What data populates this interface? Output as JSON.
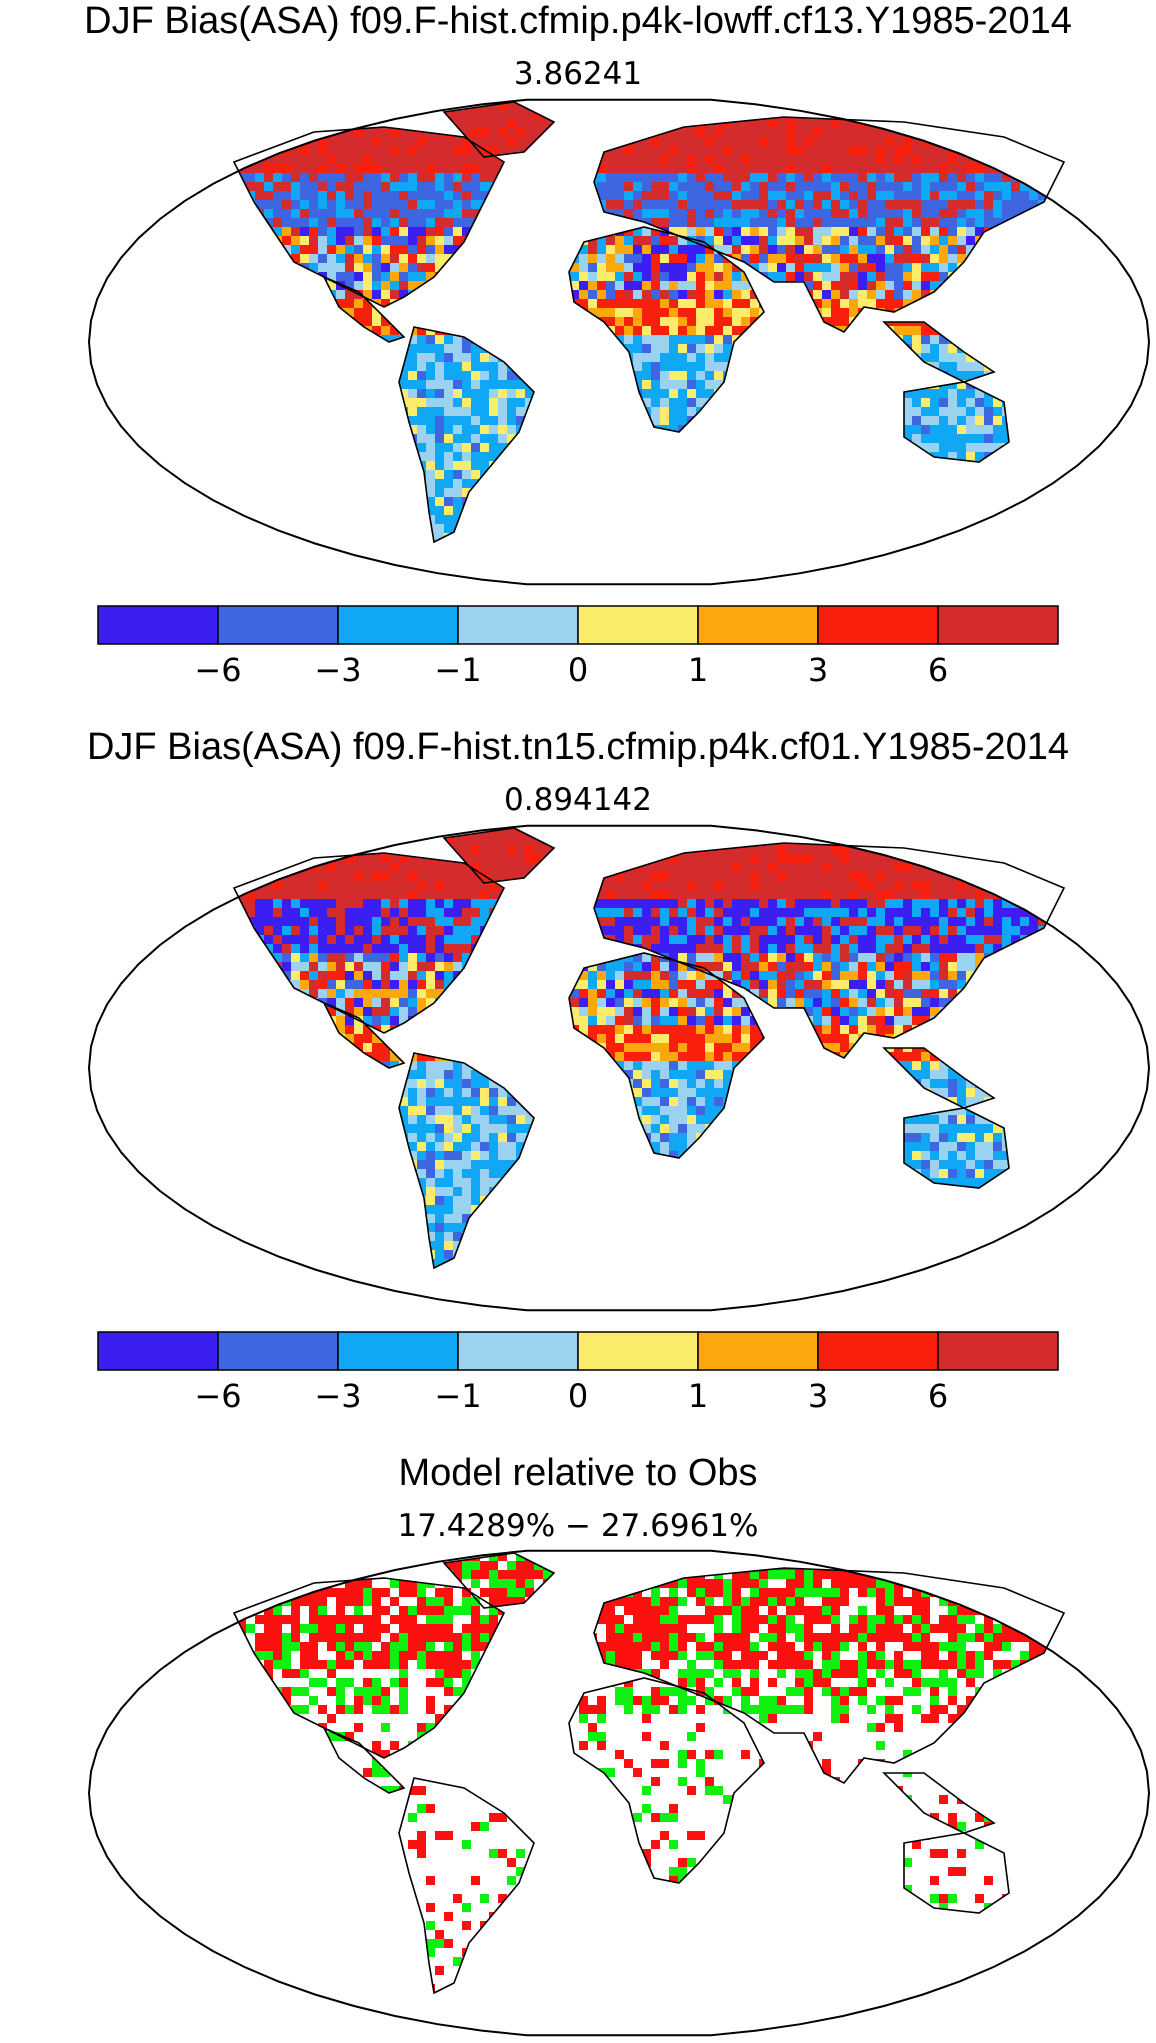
{
  "panels": [
    {
      "title": "DJF Bias(ASA) f09.F-hist.cfmip.p4k-lowff.cf13.Y1985-2014",
      "subtitle": "3.86241",
      "kind": "bias"
    },
    {
      "title": "DJF Bias(ASA) f09.F-hist.tn15.cfmip.p4k.cf01.Y1985-2014",
      "subtitle": "0.894142",
      "kind": "bias"
    },
    {
      "title": "Model relative to Obs",
      "subtitle": "17.4289% − 27.6961%",
      "kind": "relative"
    }
  ],
  "colorbar": {
    "colors": [
      "#3b1ff0",
      "#3d66e0",
      "#10a8f4",
      "#9ad2ef",
      "#fcec6c",
      "#fca80c",
      "#f8200c",
      "#d42c2c"
    ],
    "labels": [
      "−6",
      "−3",
      "−1",
      "0",
      "1",
      "3",
      "6"
    ]
  },
  "relative_colors": {
    "worse": "#ff1010",
    "better": "#10f010"
  }
}
